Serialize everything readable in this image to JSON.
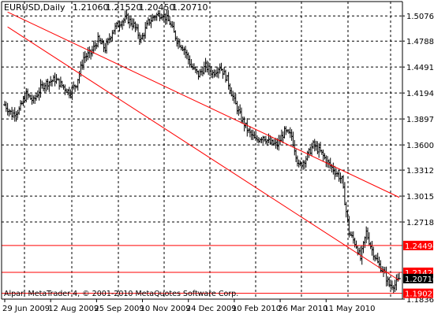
{
  "header": {
    "symbol": "EURUSD,Daily",
    "open": "1.21060",
    "high": "1.21520",
    "low": "1.20450",
    "close": "1.20710"
  },
  "footer": {
    "copyright": "Alpari MetaTrader 4, © 2001-2010 MetaQuotes Software Corp."
  },
  "colors": {
    "background": "#ffffff",
    "bars": "#000000",
    "grid": "#000000",
    "channel": "#ff0000",
    "hline": "#ff0000",
    "current_price_label_bg": "#000000",
    "level_label_bg": "#ff0000"
  },
  "chart_data": {
    "type": "ohlc",
    "title": "EURUSD,Daily",
    "ylim": [
      1.1836,
      1.524
    ],
    "y_ticks": [
      "1.50760",
      "1.47880",
      "1.44910",
      "1.41940",
      "1.38970",
      "1.36000",
      "1.33120",
      "1.30150",
      "1.27180",
      "1.21427",
      "1.20710",
      "1.18360"
    ],
    "x_ticks": [
      "29 Jun 2009",
      "12 Aug 2009",
      "25 Sep 2009",
      "10 Nov 2009",
      "24 Dec 2009",
      "10 Feb 2010",
      "26 Mar 2010",
      "11 May 2010"
    ],
    "grid": true,
    "series_path": [
      [
        0,
        1.406
      ],
      [
        5,
        1.395
      ],
      [
        10,
        1.4
      ],
      [
        15,
        1.418
      ],
      [
        20,
        1.41
      ],
      [
        25,
        1.425
      ],
      [
        28,
        1.43
      ],
      [
        35,
        1.435
      ],
      [
        40,
        1.428
      ],
      [
        45,
        1.42
      ],
      [
        50,
        1.43
      ],
      [
        55,
        1.46
      ],
      [
        60,
        1.465
      ],
      [
        65,
        1.48
      ],
      [
        70,
        1.47
      ],
      [
        75,
        1.49
      ],
      [
        80,
        1.5
      ],
      [
        85,
        1.505
      ],
      [
        90,
        1.497
      ],
      [
        95,
        1.48
      ],
      [
        100,
        1.5
      ],
      [
        105,
        1.508
      ],
      [
        110,
        1.51
      ],
      [
        115,
        1.5
      ],
      [
        120,
        1.48
      ],
      [
        125,
        1.47
      ],
      [
        130,
        1.45
      ],
      [
        135,
        1.44
      ],
      [
        140,
        1.45
      ],
      [
        145,
        1.442
      ],
      [
        150,
        1.45
      ],
      [
        155,
        1.435
      ],
      [
        160,
        1.41
      ],
      [
        165,
        1.39
      ],
      [
        170,
        1.375
      ],
      [
        175,
        1.365
      ],
      [
        180,
        1.37
      ],
      [
        185,
        1.362
      ],
      [
        190,
        1.36
      ],
      [
        195,
        1.375
      ],
      [
        200,
        1.37
      ],
      [
        205,
        1.335
      ],
      [
        210,
        1.345
      ],
      [
        215,
        1.36
      ],
      [
        220,
        1.352
      ],
      [
        225,
        1.34
      ],
      [
        230,
        1.33
      ],
      [
        235,
        1.32
      ],
      [
        240,
        1.26
      ],
      [
        245,
        1.245
      ],
      [
        248,
        1.23
      ],
      [
        252,
        1.26
      ],
      [
        256,
        1.24
      ],
      [
        260,
        1.225
      ],
      [
        264,
        1.215
      ],
      [
        268,
        1.2
      ],
      [
        272,
        1.2
      ],
      [
        275,
        1.207
      ]
    ],
    "channel_lines": [
      {
        "p1": [
          2,
          1.512
        ],
        "p2": [
          275,
          1.3
        ]
      },
      {
        "p1": [
          2,
          1.495
        ],
        "p2": [
          275,
          1.205
        ]
      }
    ],
    "horizontal_lines": [
      {
        "value": 1.24494,
        "label": "1.24494"
      },
      {
        "value": 1.21427,
        "label": "1.21427"
      },
      {
        "value": 1.19022,
        "label": "1.19022"
      }
    ],
    "current_price": {
      "value": 1.2071,
      "label": "1.20710"
    }
  }
}
